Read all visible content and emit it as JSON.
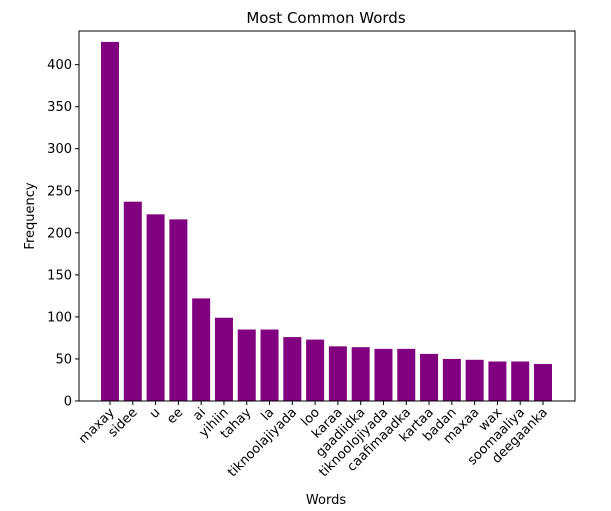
{
  "chart_data": {
    "type": "bar",
    "title": "Most Common Words",
    "xlabel": "Words",
    "ylabel": "Frequency",
    "ylim": [
      0,
      440
    ],
    "yticks": [
      0,
      50,
      100,
      150,
      200,
      250,
      300,
      350,
      400
    ],
    "grid": false,
    "bar_color": "#800080",
    "categories": [
      "maxay",
      "sidee",
      "u",
      "ee",
      "ai",
      "yihiin",
      "tahay",
      "la",
      "tiknoolajiyada",
      "loo",
      "karaa",
      "gaadiidka",
      "tiknoolojiyada",
      "caafimaadka",
      "kartaa",
      "badan",
      "maxaa",
      "wax",
      "soomaaliya",
      "deegaanka"
    ],
    "values": [
      427,
      237,
      222,
      216,
      122,
      99,
      85,
      85,
      76,
      73,
      65,
      64,
      62,
      62,
      56,
      50,
      49,
      47,
      47,
      44
    ]
  }
}
